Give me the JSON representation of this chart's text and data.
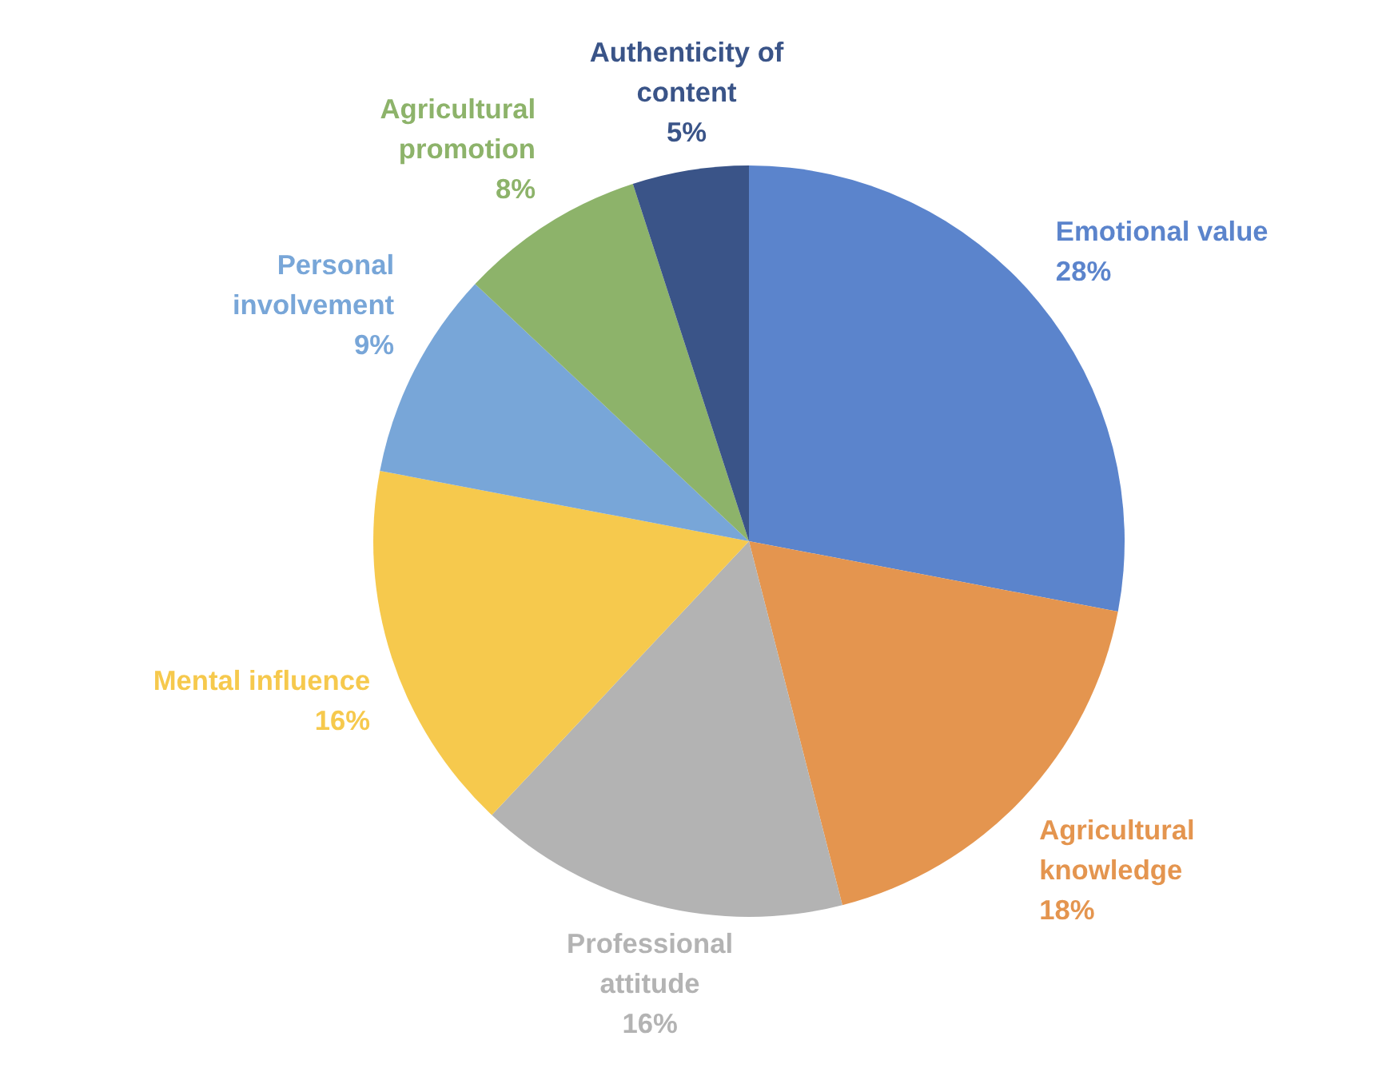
{
  "chart_data": {
    "type": "pie",
    "categories": [
      "Emotional value",
      "Agricultural knowledge",
      "Professional attitude",
      "Mental influence",
      "Personal involvement",
      "Agricultural promotion",
      "Authenticity of content"
    ],
    "values": [
      28,
      18,
      16,
      16,
      9,
      8,
      5
    ],
    "colors": [
      "#5b84cc",
      "#e4954f",
      "#b3b3b3",
      "#f6c94d",
      "#78a6d8",
      "#8db36a",
      "#3a5488"
    ],
    "value_labels": [
      "28%",
      "18%",
      "16%",
      "16%",
      "9%",
      "8%",
      "5%"
    ]
  }
}
